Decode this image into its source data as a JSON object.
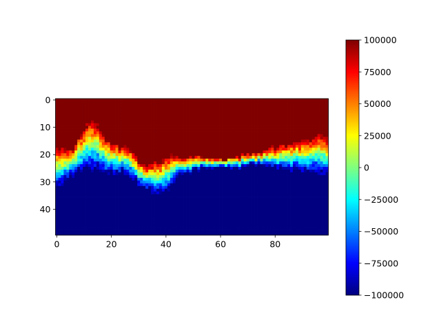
{
  "chart_data": {
    "type": "heatmap",
    "title": "",
    "xlabel": "",
    "ylabel": "",
    "rows": 50,
    "cols": 100,
    "xlim": [
      0,
      99
    ],
    "ylim": [
      49,
      0
    ],
    "x_ticks": [
      "0",
      "20",
      "40",
      "60",
      "80"
    ],
    "x_tick_values": [
      0,
      20,
      40,
      60,
      80
    ],
    "y_ticks": [
      "0",
      "10",
      "20",
      "30",
      "40"
    ],
    "y_tick_values": [
      0,
      10,
      20,
      30,
      40
    ],
    "colormap": "jet",
    "vmin": -100000,
    "vmax": 100000,
    "colorbar": {
      "ticks": [
        "100000",
        "75000",
        "50000",
        "25000",
        "0",
        "−25000",
        "−50000",
        "−75000",
        "−100000"
      ],
      "tick_values": [
        100000,
        75000,
        50000,
        25000,
        0,
        -25000,
        -50000,
        -75000,
        -100000
      ]
    },
    "boundary": {
      "description_x": [
        0,
        3,
        6,
        9,
        12,
        15,
        18,
        21,
        24,
        27,
        30,
        33,
        36,
        39,
        42,
        45,
        50,
        55,
        60,
        65,
        70,
        75,
        80,
        85,
        90,
        95,
        99
      ],
      "top_row": [
        18,
        18,
        17,
        12,
        8,
        9,
        14,
        16,
        17,
        18,
        22,
        24,
        23,
        22,
        20,
        21,
        21,
        21,
        22,
        21,
        20,
        19,
        17,
        16,
        15,
        13,
        13
      ],
      "bottom_row": [
        32,
        30,
        28,
        26,
        25,
        26,
        27,
        27,
        27,
        28,
        31,
        33,
        34,
        35,
        32,
        28,
        26,
        25,
        25,
        25,
        24,
        24,
        25,
        26,
        26,
        27,
        28
      ]
    }
  }
}
